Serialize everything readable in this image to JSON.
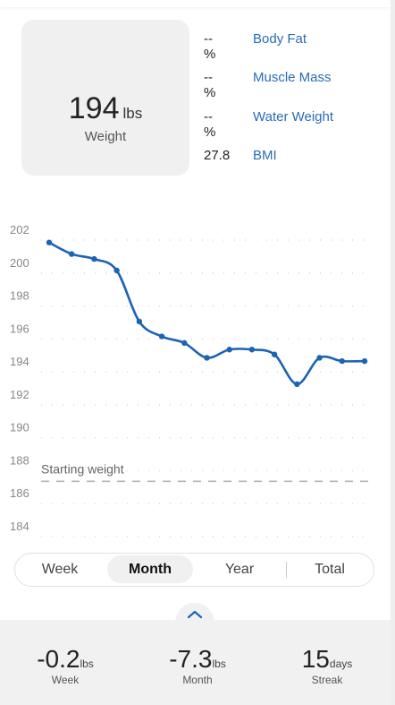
{
  "summary": {
    "weight_value": "194",
    "weight_unit": "lbs",
    "weight_label": "Weight"
  },
  "metrics": [
    {
      "value": "--%",
      "label": "Body Fat"
    },
    {
      "value": "--%",
      "label": "Muscle Mass"
    },
    {
      "value": "--%",
      "label": "Water Weight"
    },
    {
      "value": "27.8",
      "label": "BMI"
    }
  ],
  "chart_data": {
    "type": "line",
    "title": "",
    "xlabel": "",
    "ylabel": "",
    "ylim": [
      183,
      202
    ],
    "y_ticks": [
      202,
      200,
      198,
      196,
      194,
      192,
      190,
      188,
      186,
      184
    ],
    "grid": true,
    "series": [
      {
        "values": [
          201.2,
          200.5,
          200.2,
          199.5,
          196.4,
          195.5,
          195.1,
          194.2,
          194.7,
          194.7,
          194.4,
          192.6,
          194.2,
          194.0,
          194.0
        ]
      }
    ],
    "reference_line": {
      "label": "Starting weight",
      "value": 186.7
    },
    "line_color": "#1d63b5"
  },
  "tabs": [
    {
      "label": "Week",
      "active": false
    },
    {
      "label": "Month",
      "active": true
    },
    {
      "label": "Year",
      "active": false
    },
    {
      "label": "Total",
      "active": false
    }
  ],
  "stats": [
    {
      "value": "-0.2",
      "unit": "lbs",
      "label": "Week"
    },
    {
      "value": "-7.3",
      "unit": "lbs",
      "label": "Month"
    },
    {
      "value": "15",
      "unit": "days",
      "label": "Streak"
    }
  ],
  "icons": {
    "expand": "chevron-up-icon"
  }
}
